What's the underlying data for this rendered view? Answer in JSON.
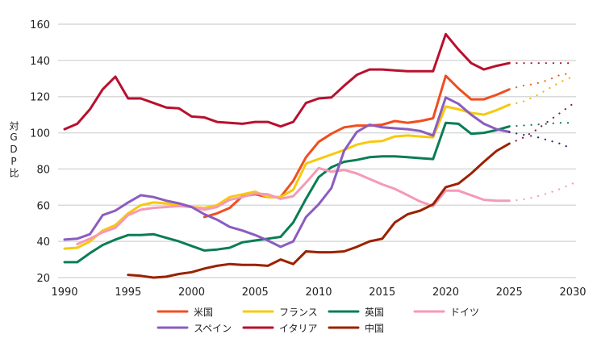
{
  "chart_data": {
    "type": "line",
    "title": "",
    "xlabel": "",
    "ylabel": "対GDP比",
    "xlim": [
      1990,
      2030
    ],
    "ylim": [
      20,
      160
    ],
    "xticks": [
      1990,
      1995,
      2000,
      2005,
      2010,
      2015,
      2020,
      2025,
      2030
    ],
    "yticks": [
      20,
      40,
      60,
      80,
      100,
      120,
      140,
      160
    ],
    "grid": "horizontal",
    "legend_position": "bottom",
    "projection_style": "dotted, 2026-2030",
    "series": [
      {
        "name": "米国",
        "color": "#f04e1e",
        "proj_color": "#e0661a",
        "start": 2001,
        "values": [
          53.5,
          55.5,
          58.5,
          65,
          66,
          64.5,
          64.5,
          73.5,
          86.5,
          95,
          99.5,
          103,
          104,
          104,
          104.5,
          106.5,
          105.5,
          106.5,
          108,
          131.5,
          124.5,
          118.5,
          118.5,
          121,
          124
        ],
        "projection": [
          126,
          127,
          129,
          132,
          133
        ]
      },
      {
        "name": "フランス",
        "color": "#f7c90e",
        "proj_color": "#f0b800",
        "start": 1990,
        "values": [
          36,
          36.5,
          40,
          46,
          49,
          55.5,
          60,
          61.5,
          61,
          60,
          59,
          58.5,
          60,
          64.5,
          66,
          67.5,
          64.5,
          64.5,
          68.5,
          83,
          85.5,
          88,
          90.5,
          93.5,
          95,
          95.5,
          98,
          98.5,
          98,
          97.5,
          114.5,
          113,
          111,
          110,
          112.5,
          115.5
        ],
        "projection": [
          117,
          120,
          124,
          128,
          131
        ]
      },
      {
        "name": "英国",
        "color": "#0a7d55",
        "proj_color": "#0a7d55",
        "start": 1990,
        "values": [
          28.5,
          28.5,
          33.5,
          38,
          41,
          43.5,
          43.5,
          44,
          42,
          40,
          37.5,
          35,
          35.5,
          36.5,
          39.5,
          40.5,
          41.5,
          42.5,
          50.5,
          63.5,
          75.5,
          81,
          84,
          85,
          86.5,
          87,
          87,
          86.5,
          86,
          85.5,
          105.5,
          105,
          99.5,
          100,
          101.5,
          103.5
        ],
        "projection": [
          104,
          104.5,
          105,
          105.5,
          105.5
        ]
      },
      {
        "name": "ドイツ",
        "color": "#f59ab5",
        "proj_color": "#f59ab5",
        "start": 1991,
        "values": [
          38.5,
          41.5,
          45,
          47.5,
          54.5,
          57.5,
          58.5,
          59,
          59.5,
          59,
          57.5,
          59,
          63,
          64.5,
          66.5,
          66,
          63.5,
          65,
          72.5,
          80.5,
          78.5,
          79.5,
          77.5,
          74.5,
          71.5,
          69,
          65.5,
          62,
          59.5,
          68,
          68,
          65.5,
          63,
          62.5,
          62.5
        ],
        "projection": [
          63,
          64.5,
          66.5,
          69,
          72
        ]
      },
      {
        "name": "スペイン",
        "color": "#8b5cbf",
        "proj_color": "#2b2a7a",
        "start": 1990,
        "values": [
          41,
          41.5,
          44,
          54.5,
          57,
          61.5,
          65.5,
          64.5,
          62.5,
          61,
          59,
          55,
          52,
          48,
          46,
          43.5,
          40.5,
          37,
          40,
          53.5,
          60.5,
          69.5,
          90,
          100.5,
          104.5,
          103,
          102.5,
          102,
          101,
          98.5,
          119.5,
          116,
          110,
          105,
          102,
          100.5
        ],
        "projection": [
          99,
          98,
          96,
          94,
          91
        ]
      },
      {
        "name": "イタリア",
        "color": "#b8102e",
        "proj_color": "#b8102e",
        "start": 1990,
        "values": [
          102,
          105,
          113,
          124,
          131,
          119,
          119,
          116.5,
          114,
          113.5,
          109,
          108.5,
          106,
          105.5,
          105,
          106,
          106,
          103.5,
          106,
          116.5,
          119,
          119.5,
          126,
          132,
          135,
          135,
          134.5,
          134,
          134,
          134,
          154.5,
          146,
          138.5,
          135,
          137,
          138.5
        ],
        "projection": [
          138.5,
          138.5,
          138.5,
          138.5,
          138.5
        ]
      },
      {
        "name": "中国",
        "color": "#9b2100",
        "proj_color": "#8b1a4a",
        "start": 1995,
        "values": [
          21.5,
          21,
          20,
          20.5,
          22,
          23,
          25,
          26.5,
          27.5,
          27,
          27,
          26.5,
          30,
          27.5,
          34.5,
          34,
          34,
          34.5,
          37,
          40,
          41.5,
          50.5,
          55,
          57,
          60.5,
          70,
          72,
          77.5,
          84,
          90,
          94
        ],
        "projection": [
          97,
          101,
          106,
          111,
          116
        ]
      }
    ]
  }
}
